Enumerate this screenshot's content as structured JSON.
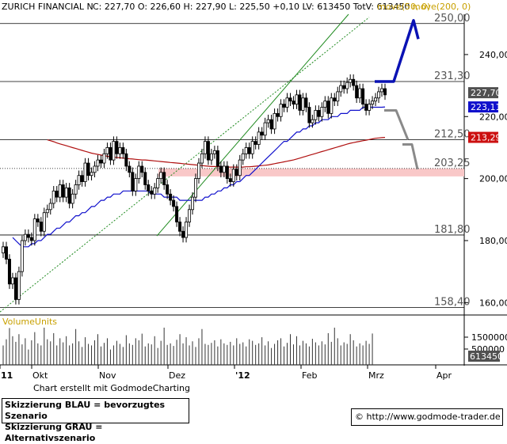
{
  "header": {
    "instrument": "ZURICH FINANCIAL N",
    "stats": "C: 227,70  O: 226,60  H: 227,90  L: 225,50  +0,10  LV: 613450  TotV: 613450",
    "ma50_label": "move(50, 0)",
    "ma200_label": "move(200, 0)"
  },
  "colors": {
    "ma50": "#1010cc",
    "ma200": "#b01010",
    "trend_green": "#1f8a1f",
    "zone_fill": "#f9c8c8",
    "scenario_blue": "#0a12b4",
    "scenario_grey": "#8a8a8a",
    "badge_price": "#505050",
    "badge_ma50": "#1010cc",
    "badge_ma200": "#cc1010"
  },
  "chart_data": {
    "type": "candlestick",
    "y_axis": {
      "ticks": [
        "160,00",
        "180,00",
        "200,00",
        "220,00",
        "240,00"
      ],
      "tick_values": [
        160,
        180,
        200,
        220,
        240
      ],
      "ylim": [
        156.0,
        253.0
      ]
    },
    "x_axis": {
      "labels": [
        "11",
        "Okt",
        "Nov",
        "Dez",
        "'12",
        "Feb",
        "Mrz",
        "Apr"
      ]
    },
    "level_lines": [
      {
        "label": "250,00",
        "value": 250.0
      },
      {
        "label": "231,30",
        "value": 231.3
      },
      {
        "label": "212,50",
        "value": 212.5
      },
      {
        "label": "203,25",
        "value": 203.25
      },
      {
        "label": "181,80",
        "value": 181.8
      },
      {
        "label": "158,40",
        "value": 158.4
      }
    ],
    "resistance_zone": [
      200.7,
      203.25
    ],
    "badges": [
      {
        "label": "227,70",
        "value": 227.7,
        "kind": "price"
      },
      {
        "label": "223,11",
        "value": 223.11,
        "kind": "ma50"
      },
      {
        "label": "213,29",
        "value": 213.29,
        "kind": "ma200"
      }
    ],
    "close": [
      178,
      174,
      166,
      168,
      161,
      170,
      180,
      182,
      181,
      180,
      187,
      186,
      183,
      189,
      190,
      192,
      196,
      194,
      198,
      194,
      197,
      192,
      195,
      198,
      201,
      199,
      205,
      201,
      202,
      204,
      206,
      205,
      208,
      210,
      206,
      212,
      208,
      210,
      208,
      204,
      202,
      196,
      200,
      204,
      202,
      198,
      196,
      195,
      197,
      200,
      202,
      198,
      195,
      193,
      191,
      186,
      183,
      181,
      186,
      190,
      194,
      200,
      205,
      208,
      212,
      206,
      208,
      209,
      204,
      202,
      204,
      200,
      199,
      203,
      201,
      206,
      208,
      210,
      208,
      212,
      211,
      215,
      214,
      218,
      219,
      216,
      221,
      220,
      224,
      223,
      226,
      225,
      224,
      227,
      222,
      226,
      223,
      218,
      219,
      222,
      220,
      223,
      225,
      221,
      226,
      225,
      228,
      230,
      229,
      231,
      232,
      230,
      226,
      229,
      224,
      222,
      224,
      225,
      226,
      228,
      229,
      227
    ],
    "ma50": [
      181,
      180,
      179,
      178,
      178,
      178,
      179,
      179,
      180,
      180,
      181,
      182,
      182,
      183,
      184,
      184,
      185,
      186,
      186,
      187,
      188,
      188,
      189,
      189,
      190,
      191,
      191,
      192,
      193,
      193,
      194,
      194,
      195,
      195,
      195,
      196,
      196,
      196,
      196,
      196,
      196,
      196,
      196,
      196,
      195,
      195,
      195,
      195,
      194,
      194,
      194,
      194,
      194,
      193,
      193,
      193,
      193,
      193,
      193,
      193,
      193,
      194,
      194,
      195,
      195,
      196,
      196,
      197,
      197,
      198,
      198,
      199,
      199,
      200,
      201,
      201,
      202,
      203,
      204,
      205,
      206,
      207,
      208,
      209,
      210,
      211,
      212,
      212,
      213,
      214,
      215,
      215,
      216,
      216,
      217,
      217,
      218,
      218,
      219,
      219,
      219,
      220,
      220,
      220,
      221,
      221,
      221,
      222,
      222,
      222,
      222,
      223,
      223,
      223,
      223,
      223,
      223,
      223,
      223.11
    ],
    "ma200": [
      212.5,
      212.2,
      211.9,
      211.5,
      211.2,
      210.9,
      210.6,
      210.3,
      210,
      209.7,
      209.4,
      209.1,
      208.8,
      208.5,
      208.2,
      208,
      207.8,
      207.6,
      207.4,
      207.2,
      207,
      206.9,
      206.8,
      206.7,
      206.6,
      206.5,
      206.4,
      206.3,
      206.2,
      206.1,
      206,
      206,
      205.9,
      205.8,
      205.7,
      205.6,
      205.5,
      205.4,
      205.3,
      205.2,
      205.1,
      205,
      204.9,
      204.8,
      204.7,
      204.6,
      204.5,
      204.4,
      204.3,
      204.2,
      204.1,
      204,
      203.9,
      203.9,
      203.8,
      203.8,
      203.7,
      203.7,
      203.7,
      203.7,
      203.7,
      203.7,
      203.7,
      203.8,
      203.8,
      203.9,
      204,
      204.1,
      204.2,
      204.3,
      204.4,
      204.6,
      204.8,
      205,
      205.2,
      205.4,
      205.6,
      205.8,
      206,
      206.3,
      206.6,
      206.9,
      207.2,
      207.5,
      207.8,
      208.1,
      208.4,
      208.7,
      209,
      209.3,
      209.6,
      209.9,
      210.2,
      210.5,
      210.8,
      211.1,
      211.4,
      211.6,
      211.8,
      212,
      212.2,
      212.4,
      212.6,
      212.8,
      213,
      213.1,
      213.2,
      213.29
    ],
    "volume_panel": {
      "title": "VolumeUnits",
      "ticks": [
        "1500000",
        "500000"
      ],
      "last_label": "613450",
      "volumes": [
        380,
        500,
        720,
        560,
        450,
        600,
        400,
        520,
        300,
        480,
        640,
        420,
        380,
        900,
        500,
        460,
        620,
        380,
        520,
        440,
        560,
        380,
        420,
        700,
        460,
        350,
        540,
        410,
        380,
        480,
        600,
        360,
        430,
        520,
        300,
        380,
        470,
        410,
        350,
        580,
        420,
        390,
        520,
        480,
        610,
        360,
        420,
        400,
        560,
        330,
        470,
        820,
        390,
        420,
        370,
        490,
        600,
        420,
        540,
        380,
        460,
        350,
        520,
        700,
        410,
        390,
        430,
        480,
        360,
        500,
        420,
        390,
        450,
        380,
        520,
        410,
        440,
        360,
        500,
        470,
        390,
        420,
        540,
        380,
        460,
        330,
        410,
        480,
        520,
        360,
        430,
        600,
        400,
        560,
        380,
        470,
        420,
        360,
        510,
        440,
        380,
        460,
        400,
        620,
        450,
        900,
        520,
        380,
        440,
        410,
        600,
        480,
        360,
        420,
        380,
        470,
        410,
        613
      ]
    },
    "scenarios": {
      "blue": "bevorzugtes Szenario",
      "grey": "Alternativszenario"
    }
  },
  "footer": {
    "credit": "Chart erstellt mit GodmodeCharting",
    "legend_line1": "Skizzierung BLAU = bevorzugtes Szenario",
    "legend_line2": "Skizzierung GRAU = Alternativszenario",
    "url": "© http://www.godmode-trader.de"
  }
}
